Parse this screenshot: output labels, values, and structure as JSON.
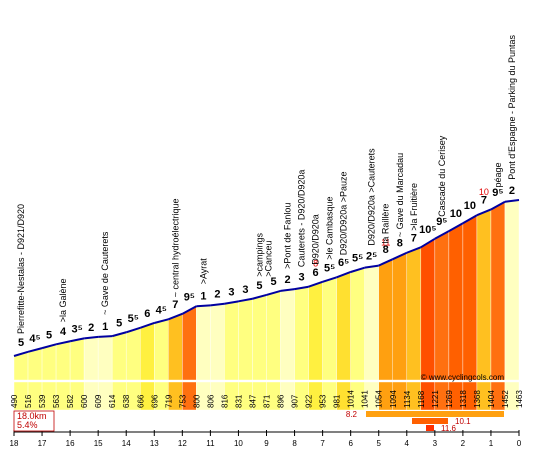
{
  "chart_data": {
    "type": "area",
    "title": "",
    "xlabel": "",
    "ylabel": "",
    "x_unit": "km remaining",
    "x_ticks": [
      "18",
      "17",
      "16",
      "15",
      "14",
      "13",
      "12",
      "11",
      "10",
      "9",
      "8",
      "7",
      "6",
      "5",
      "4",
      "3",
      "2",
      "1",
      "0"
    ],
    "ylim": [
      490,
      1463
    ],
    "segments": [
      {
        "grade": 5,
        "color": "#ffff80"
      },
      {
        "grade": 4.5,
        "color": "#ffff80"
      },
      {
        "grade": 5,
        "color": "#ffff80"
      },
      {
        "grade": 4,
        "color": "#ffff80"
      },
      {
        "grade": 3.5,
        "color": "#ffff80"
      },
      {
        "grade": 2,
        "color": "#ffffc0"
      },
      {
        "grade": 1,
        "color": "#ffffc0"
      },
      {
        "grade": 5,
        "color": "#ffff80"
      },
      {
        "grade": 5.5,
        "color": "#ffff80"
      },
      {
        "grade": 6,
        "color": "#fff040"
      },
      {
        "grade": 4.5,
        "color": "#ffff80"
      },
      {
        "grade": 7,
        "color": "#ffc020"
      },
      {
        "grade": 9.5,
        "color": "#ff7010"
      },
      {
        "grade": 1,
        "color": "#ffffc0"
      },
      {
        "grade": 2,
        "color": "#ffffc0"
      },
      {
        "grade": 3,
        "color": "#ffff80"
      },
      {
        "grade": 3,
        "color": "#ffff80"
      },
      {
        "grade": 5,
        "color": "#ffff80"
      },
      {
        "grade": 5,
        "color": "#ffff80"
      },
      {
        "grade": 2,
        "color": "#ffffc0"
      },
      {
        "grade": 3,
        "color": "#ffff80"
      },
      {
        "grade": 6,
        "color": "#fff040"
      },
      {
        "grade": 5.5,
        "color": "#ffff80"
      },
      {
        "grade": 6.5,
        "color": "#ffe030"
      },
      {
        "grade": 5.5,
        "color": "#ffff80"
      },
      {
        "grade": 2.5,
        "color": "#ffffc0"
      },
      {
        "grade": 8,
        "color": "#ffa010"
      },
      {
        "grade": 8,
        "color": "#ffa010"
      },
      {
        "grade": 7,
        "color": "#ffc020"
      },
      {
        "grade": 10.5,
        "color": "#ff5000"
      },
      {
        "grade": 9.5,
        "color": "#ff7010"
      },
      {
        "grade": 10,
        "color": "#ff6000"
      },
      {
        "grade": 10,
        "color": "#ff6000"
      },
      {
        "grade": 7,
        "color": "#ffc020"
      },
      {
        "grade": 9.5,
        "color": "#ff7010"
      },
      {
        "grade": 2,
        "color": "#ffffc0"
      }
    ],
    "grade_labels": [
      "5",
      "4⁵",
      "5",
      "4",
      "3⁵",
      "2",
      "1",
      "5",
      "5⁵",
      "6",
      "4⁵",
      "7",
      "9⁵",
      "1",
      "2",
      "3",
      "3",
      "5",
      "5",
      "2",
      "3",
      "6",
      "5⁵",
      "6⁵",
      "5⁵",
      "2⁵",
      "8",
      "8",
      "7",
      "10⁵",
      "9⁵",
      "10",
      "10",
      "7",
      "9⁵",
      "2"
    ],
    "altitudes": [
      "490",
      "516",
      "539",
      "563",
      "582",
      "600",
      "609",
      "614",
      "638",
      "666",
      "696",
      "719",
      "753",
      "800",
      "806",
      "816",
      "831",
      "847",
      "871",
      "896",
      "907",
      "922",
      "953",
      "981",
      "1014",
      "1041",
      "1054",
      "1094",
      "1134",
      "1168",
      "1221",
      "1269",
      "1318",
      "1368",
      "1404",
      "1452",
      "1463"
    ],
    "red_marks": [
      {
        "seg": 21,
        "label": "8"
      },
      {
        "seg": 26,
        "label": "11"
      },
      {
        "seg": 33,
        "label": "10"
      }
    ],
    "locations": [
      {
        "seg": 0,
        "label": "Pierrefitte-Nestalas - D921/D920"
      },
      {
        "seg": 3,
        "label": ">la Galène"
      },
      {
        "seg": 6,
        "label": "~ Gave de Cauterets"
      },
      {
        "seg": 11,
        "label": "~ central hydroélectrique"
      },
      {
        "seg": 13,
        "label": ">Ayrat"
      },
      {
        "seg": 17,
        "label": ">campings"
      },
      {
        "seg": 17,
        "label": ">Canceu"
      },
      {
        "seg": 19,
        "label": ">Pont de Fanlou"
      },
      {
        "seg": 20,
        "label": "Cauterets - D920/D920a"
      },
      {
        "seg": 21,
        "label": "D920/D920a"
      },
      {
        "seg": 22,
        "label": ">le Cambasque"
      },
      {
        "seg": 23,
        "label": "D920/D920a >Pauze"
      },
      {
        "seg": 25,
        "label": "D920/D920a >Cauterets"
      },
      {
        "seg": 26,
        "label": "la Raillère"
      },
      {
        "seg": 27,
        "label": "~ Gave du Marcadau"
      },
      {
        "seg": 28,
        "label": ">la Fruitière"
      },
      {
        "seg": 30,
        "label": "Cascade du Cerisey"
      },
      {
        "seg": 34,
        "label": "péage"
      },
      {
        "seg": 35,
        "label": "Pont d'Espagne - Parking du Puntas"
      }
    ],
    "legend": [
      "8.2",
      "10.1",
      "11.6"
    ],
    "stats": [
      "18.0km",
      "5.4%"
    ],
    "credit": "© www.cyclingcols.com"
  }
}
